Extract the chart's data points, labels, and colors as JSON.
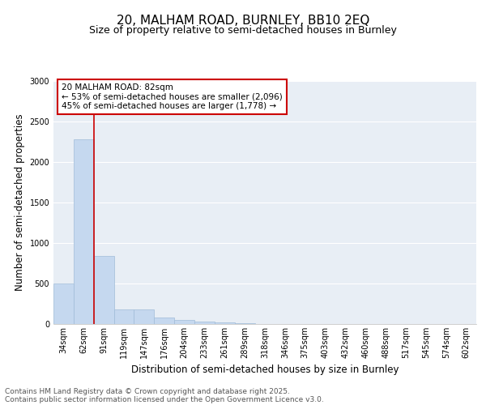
{
  "title_line1": "20, MALHAM ROAD, BURNLEY, BB10 2EQ",
  "title_line2": "Size of property relative to semi-detached houses in Burnley",
  "xlabel": "Distribution of semi-detached houses by size in Burnley",
  "ylabel": "Number of semi-detached properties",
  "categories": [
    "34sqm",
    "62sqm",
    "91sqm",
    "119sqm",
    "147sqm",
    "176sqm",
    "204sqm",
    "233sqm",
    "261sqm",
    "289sqm",
    "318sqm",
    "346sqm",
    "375sqm",
    "403sqm",
    "432sqm",
    "460sqm",
    "488sqm",
    "517sqm",
    "545sqm",
    "574sqm",
    "602sqm"
  ],
  "values": [
    500,
    2280,
    845,
    185,
    185,
    80,
    50,
    30,
    18,
    8,
    3,
    0,
    0,
    0,
    0,
    0,
    0,
    0,
    0,
    0,
    0
  ],
  "bar_color": "#c5d8ef",
  "bar_edge_color": "#a0bcd8",
  "vline_color": "#cc0000",
  "vline_x": 2.0,
  "annotation_line1": "20 MALHAM ROAD: 82sqm",
  "annotation_line2": "← 53% of semi-detached houses are smaller (2,096)",
  "annotation_line3": "45% of semi-detached houses are larger (1,778) →",
  "annotation_box_color": "#cc0000",
  "ylim": [
    0,
    3000
  ],
  "yticks": [
    0,
    500,
    1000,
    1500,
    2000,
    2500,
    3000
  ],
  "plot_bg_color": "#e8eef5",
  "grid_color": "#ffffff",
  "footer_line1": "Contains HM Land Registry data © Crown copyright and database right 2025.",
  "footer_line2": "Contains public sector information licensed under the Open Government Licence v3.0.",
  "title_fontsize": 11,
  "subtitle_fontsize": 9,
  "axis_label_fontsize": 8.5,
  "tick_fontsize": 7,
  "annotation_fontsize": 7.5,
  "footer_fontsize": 6.5
}
